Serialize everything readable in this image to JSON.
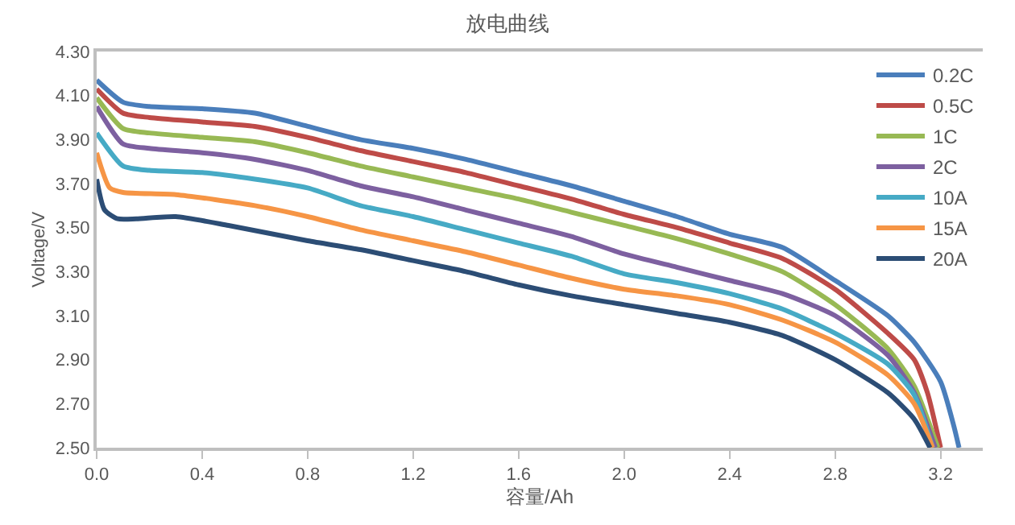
{
  "chart_data": {
    "type": "line",
    "title": "放电曲线",
    "xlabel": "容量/Ah",
    "ylabel": "Voltage/V",
    "xlim": [
      0,
      3.36
    ],
    "xticks": [
      {
        "value": 0,
        "label": "0.0"
      },
      0.4,
      0.8,
      1.2,
      1.6,
      {
        "value": 2,
        "label": "2.0"
      },
      2.4,
      2.8,
      3.2
    ],
    "ylim": [
      2.5,
      4.3
    ],
    "yticks": [
      {
        "value": 2.5,
        "label": "2.50"
      },
      {
        "value": 2.7,
        "label": "2.70"
      },
      {
        "value": 2.9,
        "label": "2.90"
      },
      {
        "value": 3.1,
        "label": "3.10"
      },
      {
        "value": 3.3,
        "label": "3.30"
      },
      {
        "value": 3.5,
        "label": "3.50"
      },
      {
        "value": 3.7,
        "label": "3.70"
      },
      {
        "value": 3.9,
        "label": "3.90"
      },
      {
        "value": 4.1,
        "label": "4.10"
      },
      {
        "value": 4.3,
        "label": "4.30"
      }
    ],
    "legend": "top right",
    "marker": "none",
    "line_style": "solid",
    "series": [
      {
        "name": "0.2C",
        "color": "#4a7ebb",
        "x": [
          0,
          0.1,
          0.2,
          0.4,
          0.6,
          0.8,
          1.0,
          1.2,
          1.4,
          1.6,
          1.8,
          2.0,
          2.2,
          2.4,
          2.6,
          2.8,
          3.0,
          3.1,
          3.2,
          3.25,
          3.27
        ],
        "values": [
          4.17,
          4.07,
          4.05,
          4.04,
          4.02,
          3.96,
          3.9,
          3.86,
          3.81,
          3.75,
          3.69,
          3.62,
          3.55,
          3.47,
          3.41,
          3.26,
          3.1,
          2.98,
          2.8,
          2.6,
          2.5
        ]
      },
      {
        "name": "0.5C",
        "color": "#be4b48",
        "x": [
          0,
          0.1,
          0.2,
          0.4,
          0.6,
          0.8,
          1.0,
          1.2,
          1.4,
          1.6,
          1.8,
          2.0,
          2.2,
          2.4,
          2.6,
          2.8,
          3.0,
          3.1,
          3.15,
          3.2
        ],
        "values": [
          4.13,
          4.02,
          4.0,
          3.98,
          3.96,
          3.91,
          3.85,
          3.8,
          3.75,
          3.69,
          3.63,
          3.56,
          3.5,
          3.43,
          3.36,
          3.22,
          3.02,
          2.9,
          2.75,
          2.5
        ]
      },
      {
        "name": "1C",
        "color": "#98b954",
        "x": [
          0,
          0.1,
          0.2,
          0.4,
          0.6,
          0.8,
          1.0,
          1.2,
          1.4,
          1.6,
          1.8,
          2.0,
          2.2,
          2.4,
          2.6,
          2.8,
          3.0,
          3.1,
          3.19
        ],
        "values": [
          4.09,
          3.95,
          3.93,
          3.91,
          3.89,
          3.84,
          3.78,
          3.73,
          3.68,
          3.63,
          3.57,
          3.51,
          3.45,
          3.38,
          3.3,
          3.15,
          2.95,
          2.78,
          2.5
        ]
      },
      {
        "name": "2C",
        "color": "#7d60a0",
        "x": [
          0,
          0.1,
          0.2,
          0.4,
          0.6,
          0.8,
          1.0,
          1.2,
          1.4,
          1.6,
          1.8,
          2.0,
          2.2,
          2.4,
          2.6,
          2.8,
          3.0,
          3.1,
          3.18
        ],
        "values": [
          4.05,
          3.88,
          3.86,
          3.84,
          3.81,
          3.76,
          3.69,
          3.64,
          3.58,
          3.52,
          3.46,
          3.38,
          3.32,
          3.26,
          3.2,
          3.1,
          2.92,
          2.75,
          2.5
        ]
      },
      {
        "name": "10A",
        "color": "#46aac5",
        "x": [
          0,
          0.1,
          0.2,
          0.4,
          0.6,
          0.8,
          1.0,
          1.2,
          1.4,
          1.6,
          1.8,
          2.0,
          2.2,
          2.4,
          2.6,
          2.8,
          3.0,
          3.1,
          3.17
        ],
        "values": [
          3.93,
          3.78,
          3.76,
          3.75,
          3.72,
          3.68,
          3.6,
          3.55,
          3.49,
          3.43,
          3.37,
          3.29,
          3.25,
          3.2,
          3.13,
          3.02,
          2.88,
          2.74,
          2.5
        ]
      },
      {
        "name": "15A",
        "color": "#f69545",
        "x": [
          0,
          0.05,
          0.1,
          0.3,
          0.6,
          0.8,
          1.0,
          1.2,
          1.4,
          1.6,
          1.8,
          2.0,
          2.2,
          2.4,
          2.6,
          2.8,
          3.0,
          3.1,
          3.17
        ],
        "values": [
          3.84,
          3.68,
          3.66,
          3.65,
          3.6,
          3.55,
          3.49,
          3.44,
          3.39,
          3.33,
          3.27,
          3.22,
          3.19,
          3.15,
          3.08,
          2.98,
          2.83,
          2.7,
          2.5
        ]
      },
      {
        "name": "20A",
        "color": "#2c4d75",
        "x": [
          0,
          0.03,
          0.08,
          0.15,
          0.3,
          0.5,
          0.8,
          1.0,
          1.2,
          1.4,
          1.6,
          1.8,
          2.0,
          2.2,
          2.4,
          2.6,
          2.8,
          3.0,
          3.1,
          3.16
        ],
        "values": [
          3.72,
          3.58,
          3.54,
          3.54,
          3.55,
          3.51,
          3.44,
          3.4,
          3.35,
          3.3,
          3.24,
          3.19,
          3.15,
          3.11,
          3.07,
          3.01,
          2.9,
          2.75,
          2.63,
          2.5
        ]
      }
    ]
  }
}
